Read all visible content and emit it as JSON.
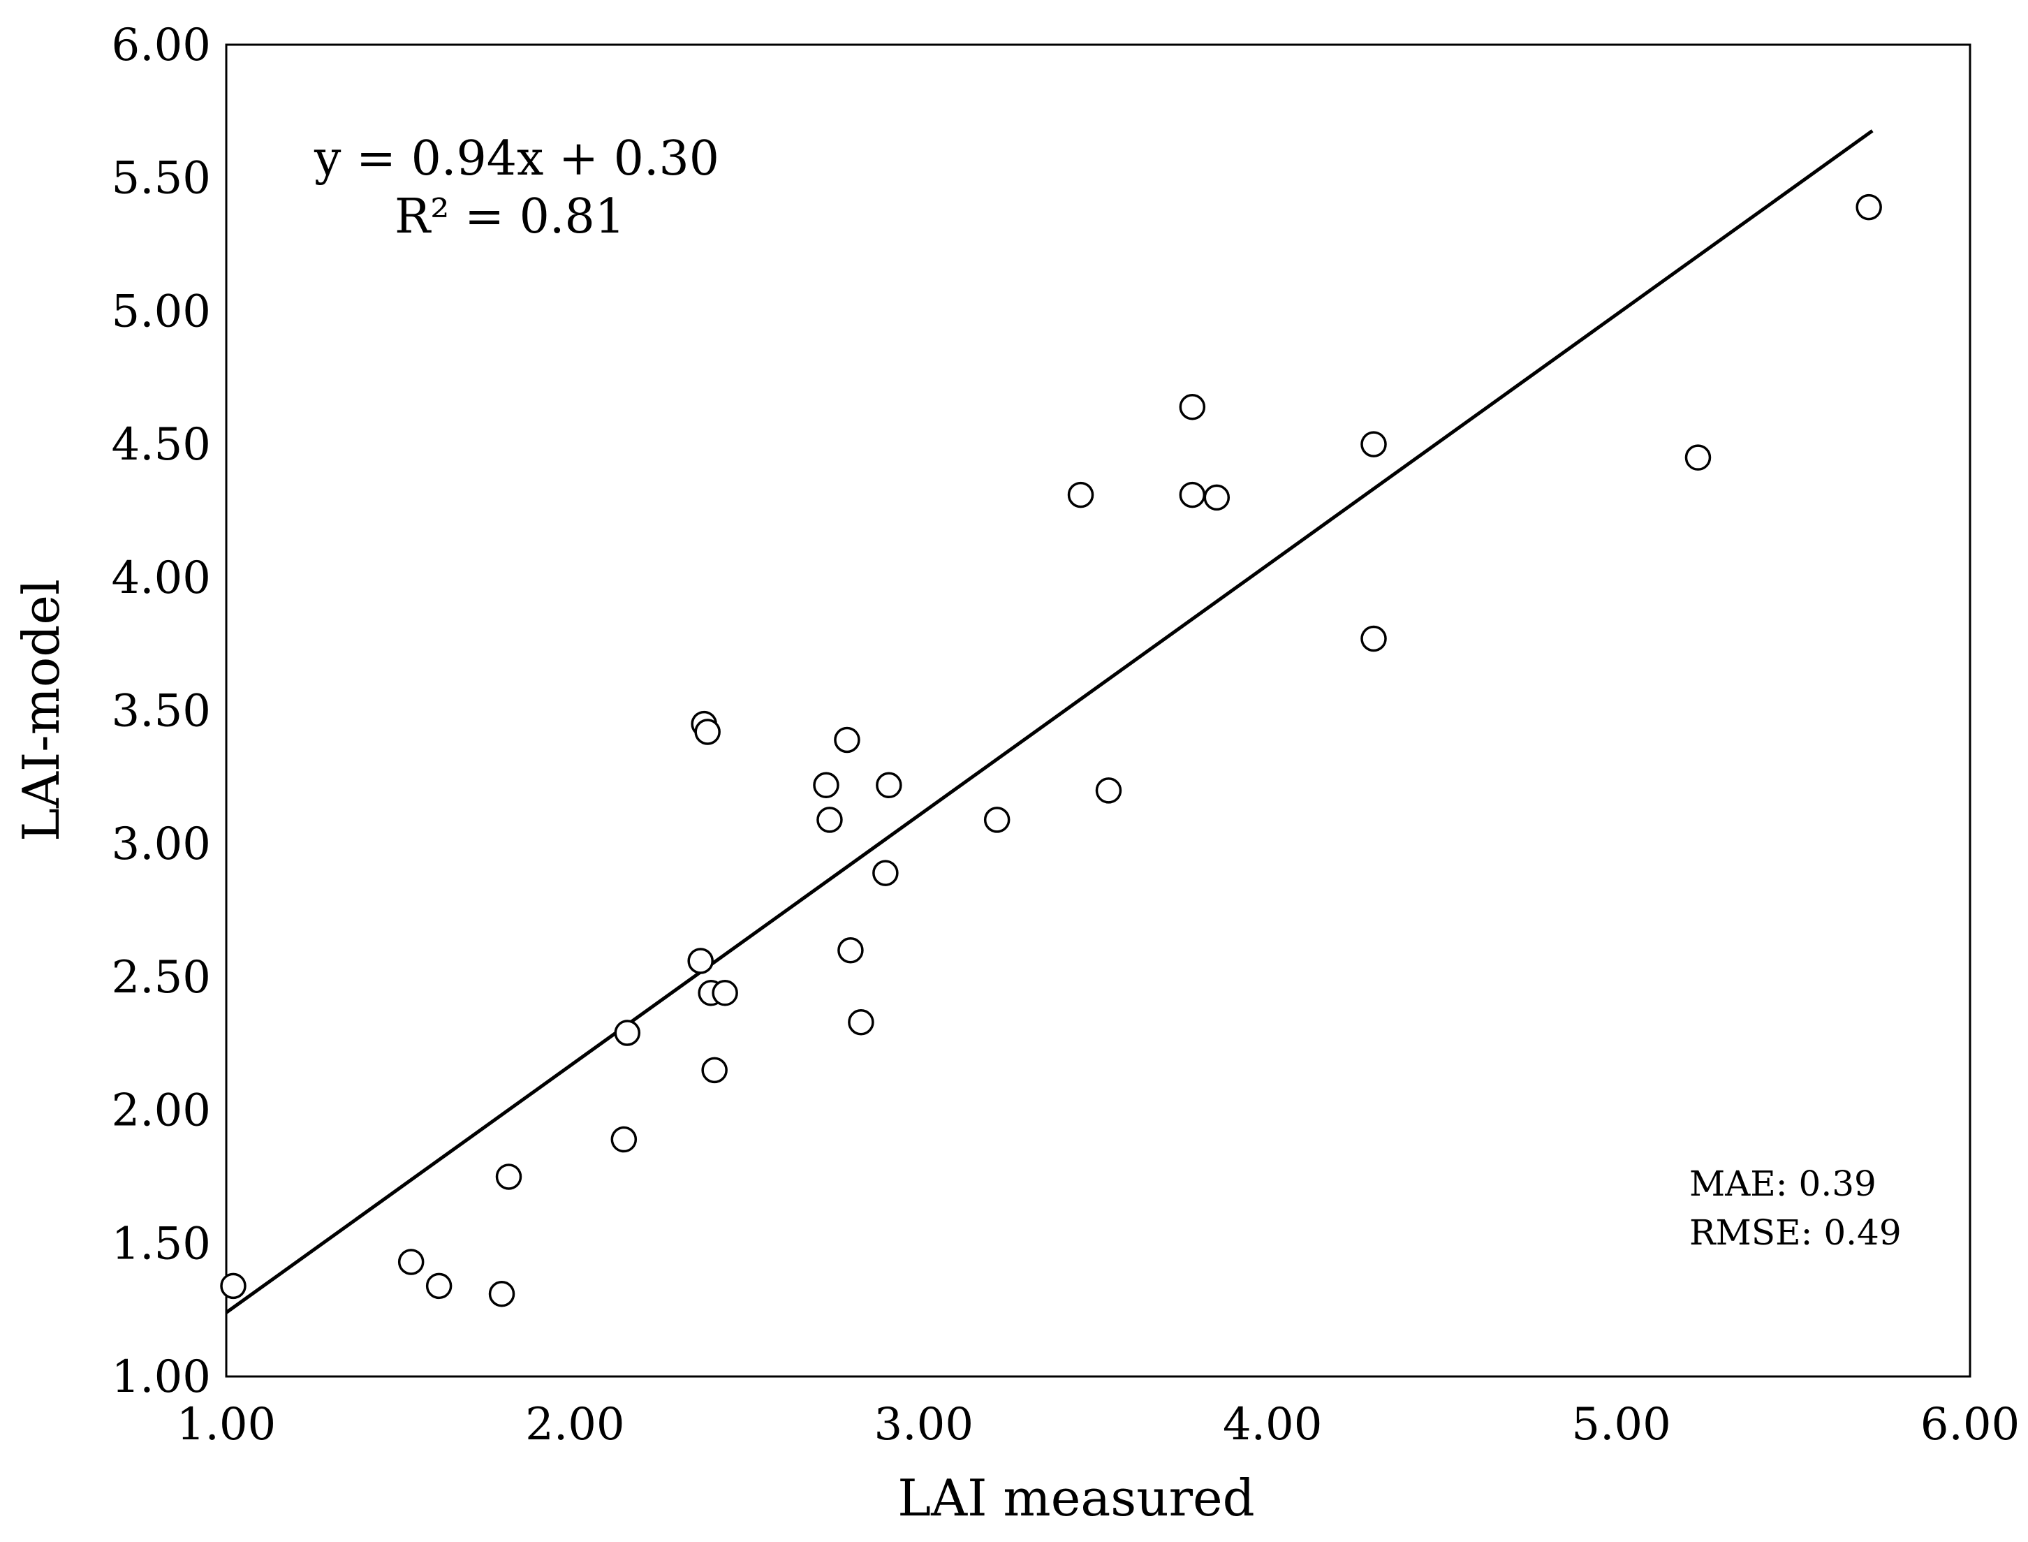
{
  "chart_data": {
    "type": "scatter",
    "title": "",
    "xlabel": "LAI measured",
    "ylabel": "LAI-model",
    "xlim": [
      1.0,
      6.0
    ],
    "ylim": [
      1.0,
      6.0
    ],
    "grid": false,
    "x_ticks": [
      "1.00",
      "2.00",
      "3.00",
      "4.00",
      "5.00",
      "6.00"
    ],
    "y_ticks": [
      "1.00",
      "1.50",
      "2.00",
      "2.50",
      "3.00",
      "3.50",
      "4.00",
      "4.50",
      "5.00",
      "5.50",
      "6.00"
    ],
    "series": [
      {
        "name": "LAI",
        "marker": "open-circle",
        "points": [
          {
            "x": 1.02,
            "y": 1.34
          },
          {
            "x": 1.53,
            "y": 1.43
          },
          {
            "x": 1.61,
            "y": 1.34
          },
          {
            "x": 1.79,
            "y": 1.31
          },
          {
            "x": 1.81,
            "y": 1.75
          },
          {
            "x": 2.14,
            "y": 1.89
          },
          {
            "x": 2.15,
            "y": 2.29
          },
          {
            "x": 2.36,
            "y": 2.56
          },
          {
            "x": 2.37,
            "y": 3.45
          },
          {
            "x": 2.38,
            "y": 3.42
          },
          {
            "x": 2.39,
            "y": 2.44
          },
          {
            "x": 2.4,
            "y": 2.15
          },
          {
            "x": 2.43,
            "y": 2.44
          },
          {
            "x": 2.72,
            "y": 3.22
          },
          {
            "x": 2.73,
            "y": 3.09
          },
          {
            "x": 2.78,
            "y": 3.39
          },
          {
            "x": 2.79,
            "y": 2.6
          },
          {
            "x": 2.82,
            "y": 2.33
          },
          {
            "x": 2.89,
            "y": 2.89
          },
          {
            "x": 2.9,
            "y": 3.22
          },
          {
            "x": 3.21,
            "y": 3.09
          },
          {
            "x": 3.45,
            "y": 4.31
          },
          {
            "x": 3.53,
            "y": 3.2
          },
          {
            "x": 3.77,
            "y": 4.64
          },
          {
            "x": 3.77,
            "y": 4.31
          },
          {
            "x": 3.84,
            "y": 4.3
          },
          {
            "x": 4.29,
            "y": 4.5
          },
          {
            "x": 4.29,
            "y": 3.77
          },
          {
            "x": 5.22,
            "y": 4.45
          },
          {
            "x": 5.71,
            "y": 5.39
          }
        ]
      }
    ],
    "trendline": {
      "type": "linear",
      "slope": 0.94,
      "intercept": 0.3,
      "x_range": [
        1.0,
        5.72
      ]
    },
    "annotations": {
      "equation": "y = 0.94x + 0.30",
      "r_squared": "R² = 0.81",
      "mae": "MAE: 0.39",
      "rmse": "RMSE: 0.49"
    },
    "colors": {
      "axis": "#000000",
      "marker_stroke": "#000000",
      "marker_fill": "#ffffff",
      "trendline": "#000000"
    }
  }
}
